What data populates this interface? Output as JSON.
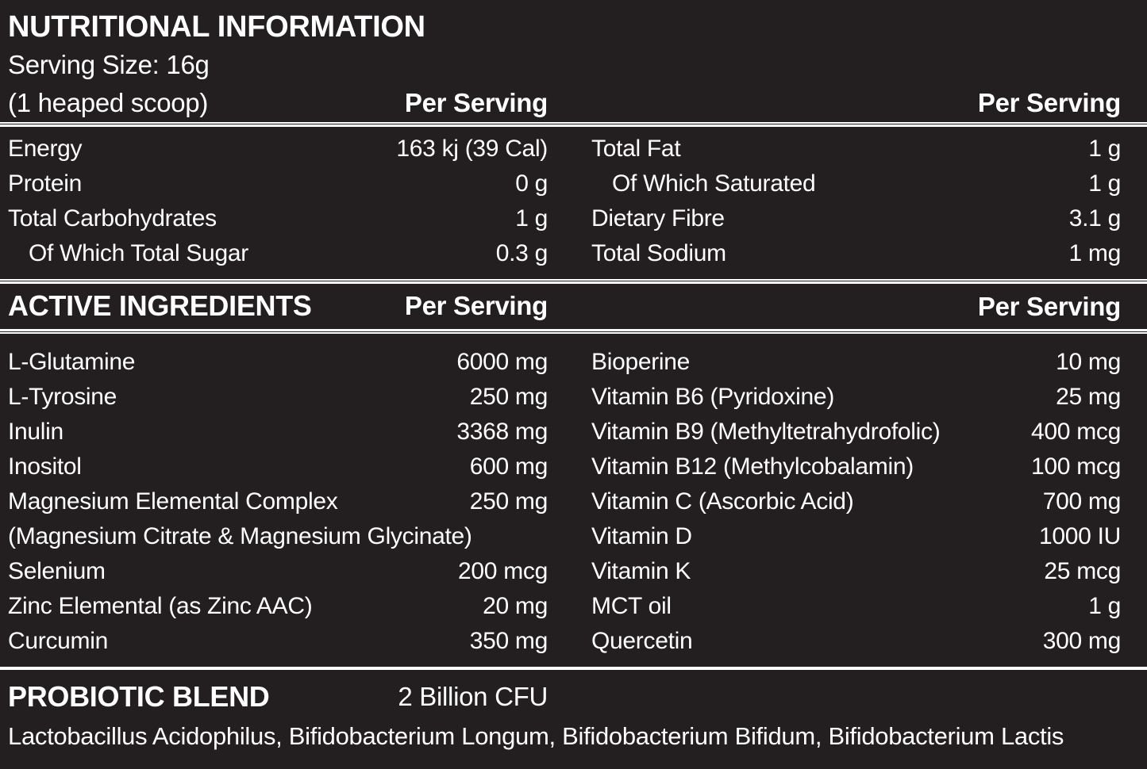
{
  "colors": {
    "background": "#231f20",
    "text": "#ffffff"
  },
  "label": {
    "title": "NUTRITIONAL INFORMATION",
    "serving_size": "Serving Size: 16g",
    "serving_note": "(1 heaped scoop)",
    "per_serving_left": "Per Serving",
    "per_serving_right": "Per Serving"
  },
  "nutrition": {
    "left": [
      {
        "name": "Energy",
        "value": "163 kj (39 Cal)"
      },
      {
        "name": "Protein",
        "value": "0 g"
      },
      {
        "name": "Total Carbohydrates",
        "value": "1 g"
      },
      {
        "name": "Of Which Total Sugar",
        "value": "0.3 g"
      }
    ],
    "right": [
      {
        "name": "Total Fat",
        "value": "1 g"
      },
      {
        "name": "Of Which Saturated",
        "value": "1 g"
      },
      {
        "name": "Dietary Fibre",
        "value": "3.1 g"
      },
      {
        "name": "Total Sodium",
        "value": "1 mg"
      }
    ]
  },
  "active": {
    "heading": "ACTIVE INGREDIENTS",
    "per_serving_left": "Per Serving",
    "per_serving_right": "Per Serving",
    "left": [
      {
        "name": "L-Glutamine",
        "value": "6000 mg"
      },
      {
        "name": "L-Tyrosine",
        "value": "250 mg"
      },
      {
        "name": "Inulin",
        "value": "3368 mg"
      },
      {
        "name": "Inositol",
        "value": "600 mg"
      },
      {
        "name": "Magnesium Elemental Complex",
        "value": "250 mg"
      },
      {
        "name": "(Magnesium Citrate & Magnesium Glycinate)",
        "value": ""
      },
      {
        "name": "Selenium",
        "value": "200 mcg"
      },
      {
        "name": "Zinc Elemental (as Zinc AAC)",
        "value": "20 mg"
      },
      {
        "name": "Curcumin",
        "value": "350 mg"
      }
    ],
    "right": [
      {
        "name": "Bioperine",
        "value": "10 mg"
      },
      {
        "name": "Vitamin B6 (Pyridoxine)",
        "value": "25 mg"
      },
      {
        "name": "Vitamin B9 (Methyltetrahydrofolic)",
        "value": "400 mcg"
      },
      {
        "name": "Vitamin B12  (Methylcobalamin)",
        "value": "100 mcg"
      },
      {
        "name": "Vitamin C (Ascorbic Acid)",
        "value": "700 mg"
      },
      {
        "name": "Vitamin D",
        "value": "1000 IU"
      },
      {
        "name": "Vitamin K",
        "value": "25 mcg"
      },
      {
        "name": "MCT oil",
        "value": "1 g"
      },
      {
        "name": "Quercetin",
        "value": "300 mg"
      }
    ]
  },
  "probiotic": {
    "heading": "PROBIOTIC BLEND",
    "amount": "2 Billion CFU",
    "strains": "Lactobacillus Acidophilus, Bifidobacterium Longum, Bifidobacterium Bifidum, Bifidobacterium Lactis"
  }
}
